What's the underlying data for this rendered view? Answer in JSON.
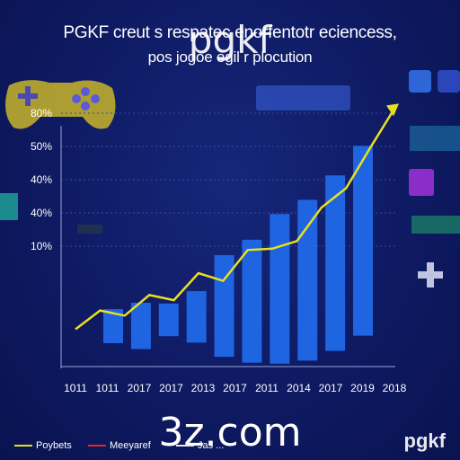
{
  "chart_data": {
    "type": "bar",
    "title": "PGKF creut s respatec enorfentotr eciencess,",
    "subtitle": "pos jogoe egil r plocution",
    "categories": [
      "1011",
      "1011",
      "2017",
      "2017",
      "2013",
      "2017",
      "2011",
      "2014",
      "2017",
      "2019",
      "2018"
    ],
    "y_tick_labels": [
      "80%",
      "50%",
      "40%",
      "40%",
      "10%"
    ],
    "bars": [
      {
        "top": 8.0,
        "bottom": -5.2
      },
      {
        "top": 10.5,
        "bottom": -7.5
      },
      {
        "top": 10.2,
        "bottom": -2.5
      },
      {
        "top": 15.0,
        "bottom": -5.0
      },
      {
        "top": 29.0,
        "bottom": -10.5
      },
      {
        "top": 35.0,
        "bottom": -12.8
      },
      {
        "top": 45.0,
        "bottom": -13.2
      },
      {
        "top": 50.5,
        "bottom": -12.0
      },
      {
        "top": 60.0,
        "bottom": -8.2
      },
      {
        "top": 71.5,
        "bottom": -2.3
      }
    ],
    "line": [
      0.2,
      7.5,
      5.5,
      13.5,
      11.5,
      22.0,
      19.0,
      31.0,
      31.5,
      34.5,
      47.5,
      55.0,
      71.0,
      86.5
    ],
    "y_range": [
      -15,
      95
    ],
    "grid": true,
    "legend": [
      {
        "label": "Poybets",
        "color": "#e8e020"
      },
      {
        "label": "Meeyaref",
        "color": "#e02828"
      },
      {
        "label": "Jas ...",
        "color": "#e8e8e8"
      }
    ]
  },
  "overlay": {
    "watermark_top": "pgkf",
    "watermark_bottom": "3z.com",
    "brand": "pgkf"
  }
}
